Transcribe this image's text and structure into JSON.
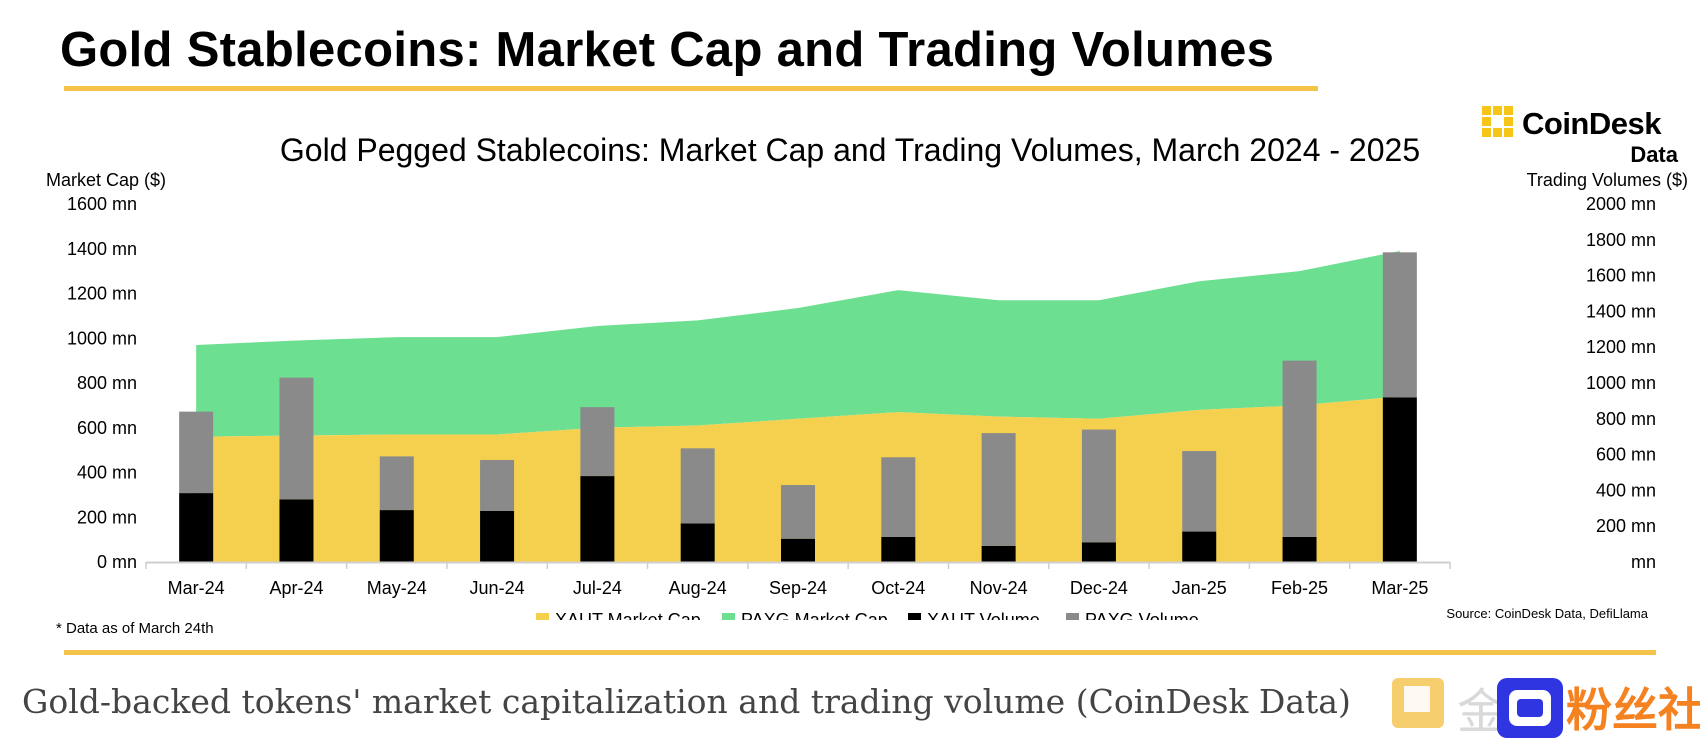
{
  "header": {
    "title": "Gold Stablecoins: Market Cap and Trading Volumes",
    "logo_name": "CoinDesk",
    "logo_sub": "Data"
  },
  "chart_data": {
    "type": "area+stacked-bar",
    "title": "Gold Pegged Stablecoins: Market Cap and Trading Volumes, March 2024 - 2025",
    "ylabel_left": "Market Cap ($)",
    "ylabel_right": "Trading Volumes ($)",
    "ylim_left": [
      0,
      1600
    ],
    "ylim_right": [
      0,
      2000
    ],
    "left_ticks": [
      "0 mn",
      "200 mn",
      "400 mn",
      "600 mn",
      "800 mn",
      "1000 mn",
      "1200 mn",
      "1400 mn",
      "1600 mn"
    ],
    "right_ticks": [
      "mn",
      "200 mn",
      "400 mn",
      "600 mn",
      "800 mn",
      "1000 mn",
      "1200 mn",
      "1400 mn",
      "1600 mn",
      "1800 mn",
      "2000 mn"
    ],
    "categories": [
      "Mar-24",
      "Apr-24",
      "May-24",
      "Jun-24",
      "Jul-24",
      "Aug-24",
      "Sep-24",
      "Oct-24",
      "Nov-24",
      "Dec-24",
      "Jan-25",
      "Feb-25",
      "Mar-25"
    ],
    "series": [
      {
        "name": "XAUT Market Cap",
        "kind": "area",
        "axis": "left",
        "color": "#F5D04F",
        "values": [
          560,
          565,
          570,
          570,
          600,
          610,
          640,
          670,
          650,
          640,
          680,
          700,
          740
        ]
      },
      {
        "name": "PAXG Market Cap",
        "kind": "area",
        "axis": "left",
        "stacked_total": true,
        "color": "#6DDF91",
        "values": [
          410,
          425,
          435,
          435,
          455,
          470,
          495,
          545,
          520,
          530,
          575,
          600,
          650
        ]
      },
      {
        "name": "XAUT Volume",
        "kind": "bar",
        "axis": "right",
        "color": "#000000",
        "values": [
          385,
          350,
          290,
          285,
          480,
          215,
          130,
          140,
          90,
          110,
          170,
          140,
          920
        ]
      },
      {
        "name": "PAXG Volume",
        "kind": "bar",
        "axis": "right",
        "stacked": true,
        "color": "#8A8A8A",
        "values": [
          455,
          680,
          300,
          285,
          385,
          420,
          300,
          445,
          630,
          630,
          450,
          985,
          810
        ]
      }
    ],
    "legend": [
      "XAUT Market Cap",
      "PAXG Market Cap",
      "XAUT Volume",
      "PAXG Volume"
    ],
    "legend_position": "bottom",
    "note": "* Data as of March 24th",
    "source": "Source: CoinDesk Data, DefiLlama"
  },
  "caption": "Gold-backed tokens' market capitalization and trading volume (CoinDesk Data)",
  "watermark": {
    "glyph": "金",
    "text": "粉丝社区"
  }
}
